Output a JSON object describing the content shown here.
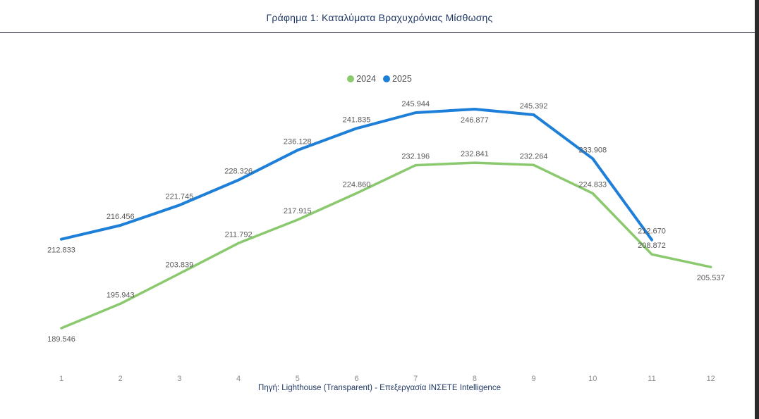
{
  "page": {
    "title": "Γράφημα 1: Καταλύματα Βραχυχρόνιας Μίσθωσης",
    "source": "Πηγή: Lighthouse (Transparent) - Επεξεργασία ΙΝΣΕΤΕ Intelligence"
  },
  "legend": [
    {
      "label": "2024",
      "color": "#8AC96E"
    },
    {
      "label": "2025",
      "color": "#1E7FD8"
    }
  ],
  "chart_data": {
    "type": "line",
    "title": "Γράφημα 1: Καταλύματα Βραχυχρόνιας Μίσθωσης",
    "xlabel": "",
    "ylabel": "",
    "x": [
      1,
      2,
      3,
      4,
      5,
      6,
      7,
      8,
      9,
      10,
      11,
      12
    ],
    "series": [
      {
        "name": "2024",
        "color": "#8AC96E",
        "values": [
          189546,
          195943,
          203839,
          211792,
          217915,
          224860,
          232196,
          232841,
          232264,
          224833,
          208872,
          205537
        ],
        "label_pos": [
          "below",
          "above",
          "above",
          "above",
          "above",
          "above",
          "above",
          "above",
          "above",
          "above",
          "above",
          "below"
        ]
      },
      {
        "name": "2025",
        "color": "#1E7FD8",
        "values": [
          212833,
          216456,
          221745,
          228326,
          236128,
          241835,
          245944,
          246877,
          245392,
          233908,
          212670
        ],
        "label_pos": [
          "below",
          "above",
          "above",
          "above",
          "above",
          "above",
          "above",
          "below",
          "above",
          "above",
          "above"
        ]
      }
    ],
    "ylim": [
      185000,
      252000
    ],
    "grid": false,
    "axes_visible": false,
    "data_labels": true,
    "thousands_separator": ".",
    "legend_position": "top-center",
    "source": "Πηγή: Lighthouse (Transparent) - Επεξεργασία ΙΝΣΕΤΕ Intelligence"
  }
}
